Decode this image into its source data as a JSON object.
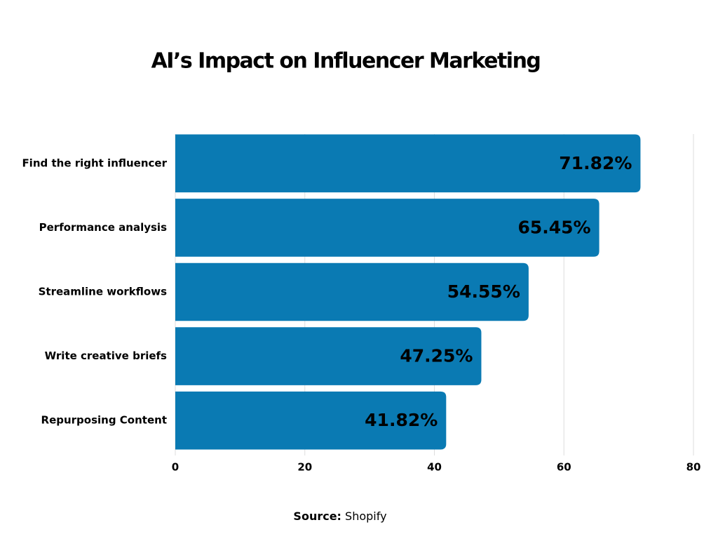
{
  "chart_data": {
    "type": "bar",
    "orientation": "horizontal",
    "title": "AI’s Impact on Influencer Marketing",
    "categories": [
      "Find the right influencer",
      "Performance analysis",
      "Streamline workflows",
      "Write creative briefs",
      "Repurposing Content"
    ],
    "values": [
      71.82,
      65.45,
      54.55,
      47.25,
      41.82
    ],
    "value_labels": [
      "71.82%",
      "65.45%",
      "54.55%",
      "47.25%",
      "41.82%"
    ],
    "color": "#0a7ab3",
    "xlim": [
      0,
      80
    ],
    "xticks": [
      0,
      20,
      40,
      60,
      80
    ],
    "grid": true,
    "source_label": "Source:",
    "source": "Shopify"
  }
}
